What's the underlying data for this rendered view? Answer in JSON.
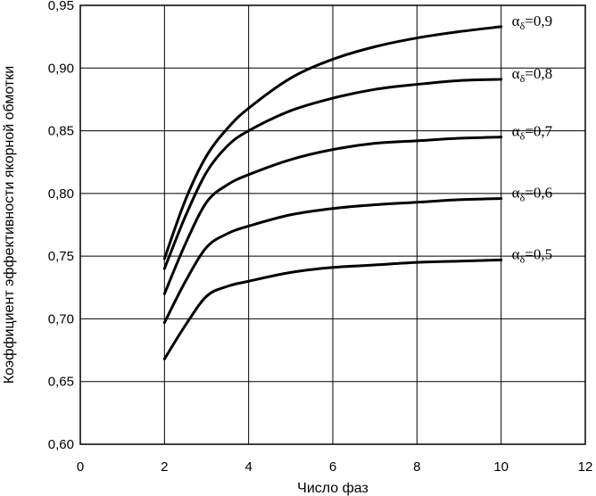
{
  "chart_data": {
    "type": "line",
    "xlabel": "Число фаз",
    "ylabel": "Коэффициент эффективности якорной обмотки",
    "xlim": [
      0,
      12
    ],
    "ylim": [
      0.6,
      0.95
    ],
    "x_ticks": [
      "0",
      "2",
      "4",
      "6",
      "8",
      "10",
      "12"
    ],
    "y_ticks": [
      "0,60",
      "0,65",
      "0,70",
      "0,75",
      "0,80",
      "0,85",
      "0,90",
      "0,95"
    ],
    "grid": true,
    "series": [
      {
        "name": "αδ=0,9",
        "label_main": "α",
        "label_sub": "δ",
        "label_value": "=0,9",
        "x": [
          2,
          2.5,
          3,
          3.5,
          4,
          5,
          6,
          7,
          8,
          9,
          10
        ],
        "y": [
          0.748,
          0.795,
          0.83,
          0.852,
          0.868,
          0.892,
          0.907,
          0.917,
          0.924,
          0.929,
          0.933
        ]
      },
      {
        "name": "αδ=0,8",
        "label_main": "α",
        "label_sub": "δ",
        "label_value": "=0,8",
        "x": [
          2,
          2.5,
          3,
          3.5,
          4,
          5,
          6,
          7,
          8,
          9,
          10
        ],
        "y": [
          0.74,
          0.782,
          0.817,
          0.838,
          0.85,
          0.866,
          0.876,
          0.883,
          0.887,
          0.89,
          0.891
        ]
      },
      {
        "name": "αδ=0,7",
        "label_main": "α",
        "label_sub": "δ",
        "label_value": "=0,7",
        "x": [
          2,
          2.5,
          3,
          3.5,
          4,
          5,
          6,
          7,
          8,
          9,
          10
        ],
        "y": [
          0.72,
          0.76,
          0.793,
          0.807,
          0.815,
          0.827,
          0.835,
          0.84,
          0.842,
          0.844,
          0.845
        ]
      },
      {
        "name": "αδ=0,6",
        "label_main": "α",
        "label_sub": "δ",
        "label_value": "=0,6",
        "x": [
          2,
          2.5,
          3,
          3.5,
          4,
          5,
          6,
          7,
          8,
          9,
          10
        ],
        "y": [
          0.697,
          0.73,
          0.757,
          0.768,
          0.774,
          0.783,
          0.788,
          0.791,
          0.793,
          0.795,
          0.796
        ]
      },
      {
        "name": "αδ=0,5",
        "label_main": "α",
        "label_sub": "δ",
        "label_value": "=0,5",
        "x": [
          2,
          2.5,
          3,
          3.5,
          4,
          5,
          6,
          7,
          8,
          9,
          10
        ],
        "y": [
          0.668,
          0.695,
          0.718,
          0.726,
          0.73,
          0.737,
          0.741,
          0.743,
          0.745,
          0.746,
          0.747
        ]
      }
    ]
  }
}
